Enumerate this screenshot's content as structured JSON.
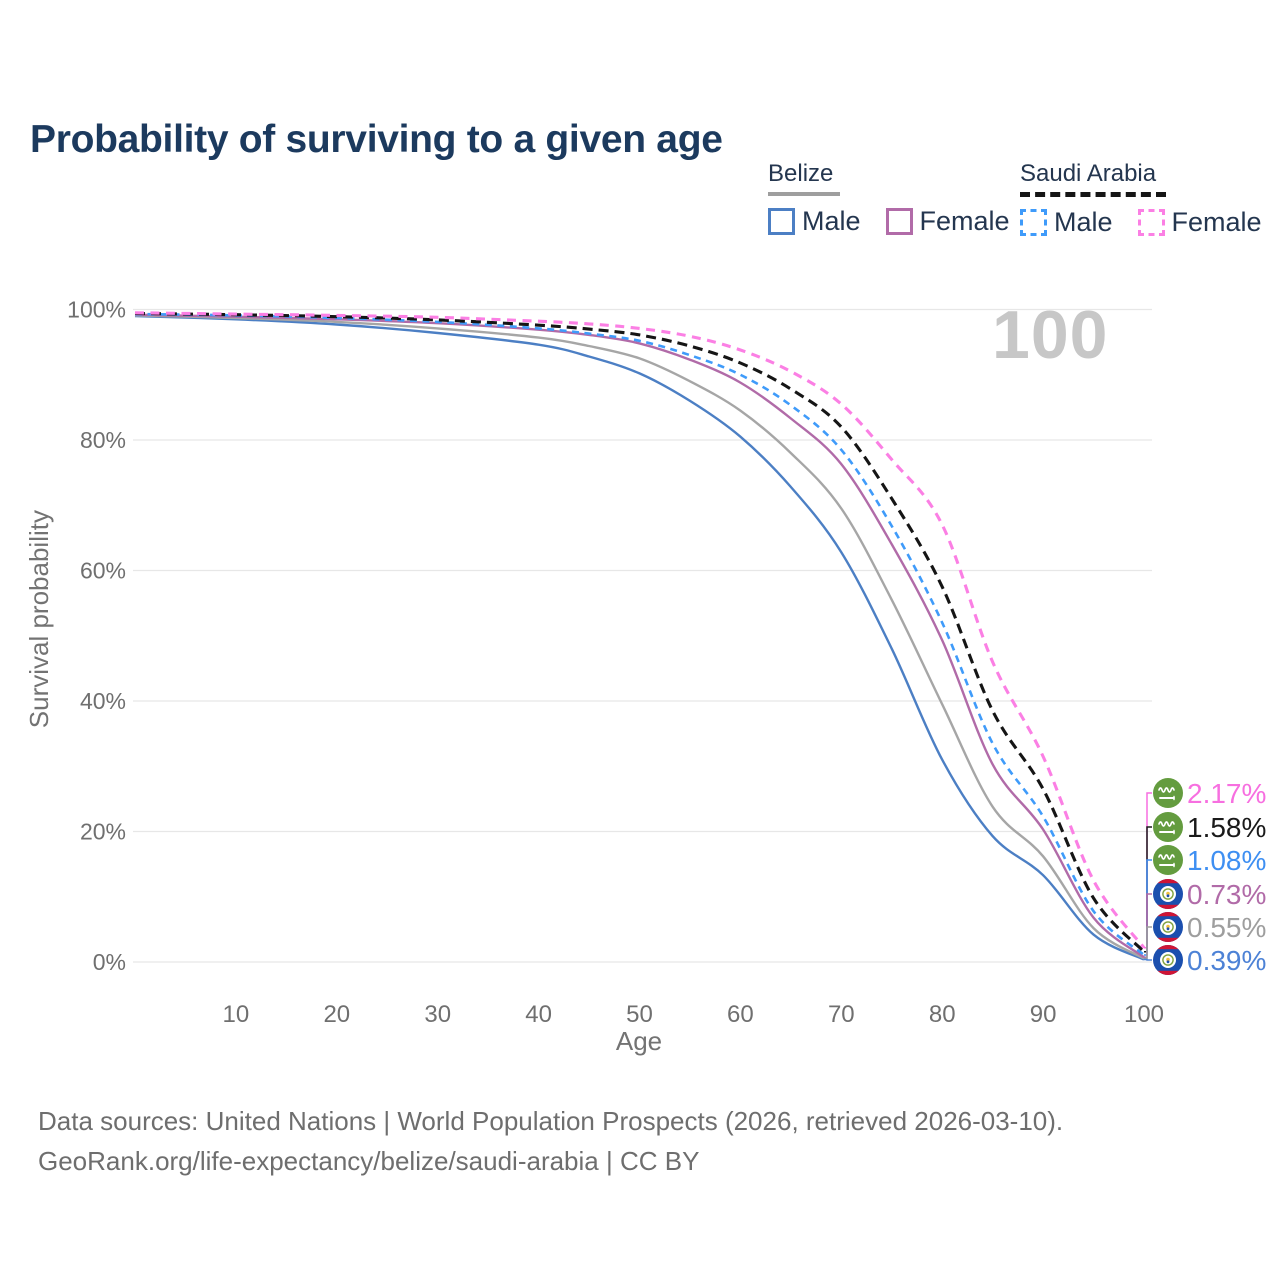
{
  "title": "Probability of surviving to a given age",
  "watermark": "100",
  "legend": {
    "groups": [
      {
        "country": "Belize",
        "line_style": "solid",
        "underline_color": "#9e9e9e",
        "items": [
          {
            "label": "Male",
            "color": "#4c7fc4",
            "dashed": false,
            "key": "belize-male"
          },
          {
            "label": "Female",
            "color": "#b16ba8",
            "dashed": false,
            "key": "belize-female"
          }
        ]
      },
      {
        "country": "Saudi Arabia",
        "line_style": "dashed",
        "underline_color": "#151515",
        "items": [
          {
            "label": "Male",
            "color": "#3f9bfa",
            "dashed": true,
            "key": "saudi-male"
          },
          {
            "label": "Female",
            "color": "#fb7fe4",
            "dashed": true,
            "key": "saudi-female"
          }
        ]
      }
    ]
  },
  "chart_data": {
    "type": "line",
    "title": "Probability of surviving to a given age",
    "xlabel": "Age",
    "ylabel": "Survival probability",
    "xlim": [
      0,
      100
    ],
    "ylim": [
      0,
      100
    ],
    "grid": "horizontal-only",
    "x_ticks": [
      10,
      20,
      30,
      40,
      50,
      60,
      70,
      80,
      90,
      100
    ],
    "y_tick_values": [
      0,
      20,
      40,
      60,
      80,
      100
    ],
    "y_tick_labels": [
      "0%",
      "20%",
      "40%",
      "60%",
      "80%",
      "100%"
    ],
    "x": [
      0,
      10,
      20,
      30,
      40,
      45,
      50,
      55,
      60,
      65,
      70,
      75,
      80,
      85,
      90,
      95,
      100
    ],
    "series": [
      {
        "name": "Belize — Male",
        "key": "belize-male",
        "color": "#4c7fc4",
        "dashed": false,
        "width": 2.4,
        "values": [
          99.0,
          98.5,
          97.7,
          96.4,
          94.6,
          92.8,
          90.2,
          86.0,
          80.5,
          72.8,
          62.8,
          48.0,
          31.0,
          19.3,
          13.3,
          4.2,
          0.39
        ]
      },
      {
        "name": "Belize — Total",
        "key": "belize-total",
        "color": "#a6a6a6",
        "dashed": false,
        "width": 2.4,
        "values": [
          99.1,
          98.7,
          98.1,
          97.1,
          95.7,
          94.4,
          92.5,
          89.0,
          84.5,
          78.0,
          69.5,
          55.5,
          39.5,
          23.8,
          16.2,
          5.2,
          0.55
        ]
      },
      {
        "name": "Belize — Female",
        "key": "belize-female",
        "color": "#b16ba8",
        "dashed": false,
        "width": 2.4,
        "values": [
          99.2,
          98.9,
          98.5,
          97.9,
          96.9,
          96.1,
          94.8,
          92.3,
          88.8,
          83.3,
          76.3,
          64.0,
          49.3,
          30.3,
          20.3,
          6.8,
          0.73
        ]
      },
      {
        "name": "Saudi Arabia — Male",
        "key": "saudi-male",
        "color": "#3f9bfa",
        "dashed": true,
        "dash": "7 5.5",
        "width": 2.6,
        "values": [
          99.3,
          99.1,
          98.7,
          98.1,
          97.1,
          96.3,
          95.2,
          93.0,
          90.0,
          85.3,
          78.5,
          66.8,
          52.0,
          33.5,
          22.3,
          7.8,
          1.08
        ]
      },
      {
        "name": "Saudi Arabia — Total",
        "key": "saudi-total",
        "color": "#151515",
        "dashed": true,
        "dash": "10 6",
        "width": 3.1,
        "values": [
          99.4,
          99.2,
          98.9,
          98.4,
          97.6,
          97.0,
          96.1,
          94.4,
          91.8,
          87.8,
          82.0,
          71.0,
          57.5,
          38.5,
          26.5,
          9.8,
          1.58
        ]
      },
      {
        "name": "Saudi Arabia — Female",
        "key": "saudi-female",
        "color": "#fb7fe4",
        "dashed": true,
        "dash": "9 6.5",
        "width": 3.1,
        "values": [
          99.5,
          99.3,
          99.1,
          98.8,
          98.2,
          97.8,
          97.1,
          95.9,
          93.8,
          90.5,
          85.5,
          77.0,
          67.0,
          46.0,
          31.5,
          12.5,
          2.17
        ]
      }
    ]
  },
  "end_labels": [
    {
      "series_key": "saudi-female",
      "flag": "saudi-arabia",
      "value_label": "2.17%",
      "color": "#f76fe0"
    },
    {
      "series_key": "saudi-total",
      "flag": "saudi-arabia",
      "value_label": "1.58%",
      "color": "#1a1a1a"
    },
    {
      "series_key": "saudi-male",
      "flag": "saudi-arabia",
      "value_label": "1.08%",
      "color": "#3e8ff2"
    },
    {
      "series_key": "belize-female",
      "flag": "belize",
      "value_label": "0.73%",
      "color": "#b16ba8"
    },
    {
      "series_key": "belize-total",
      "flag": "belize",
      "value_label": "0.55%",
      "color": "#9e9e9e"
    },
    {
      "series_key": "belize-male",
      "flag": "belize",
      "value_label": "0.39%",
      "color": "#4d82d6"
    }
  ],
  "flag_colors": {
    "saudi_green": "#649c3f",
    "belize_blue": "#1b4fae",
    "belize_red": "#cf1535",
    "belize_ring_olive": "#7fa03c"
  },
  "footer": {
    "line1": "Data sources: United Nations | World Population Prospects (2026, retrieved 2026-03-10).",
    "line2": "GeoRank.org/life-expectancy/belize/saudi-arabia | CC BY"
  }
}
